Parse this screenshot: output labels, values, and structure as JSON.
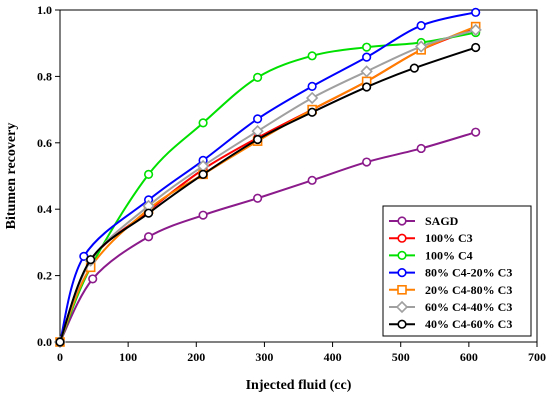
{
  "chart_data": {
    "type": "line",
    "xlabel": "Injected fluid (cc)",
    "ylabel": "Bitumen recovery",
    "xlim": [
      0,
      700
    ],
    "ylim": [
      0,
      1.0
    ],
    "xticks": [
      "0",
      "100",
      "200",
      "300",
      "400",
      "500",
      "600",
      "700"
    ],
    "yticks": [
      "0.0",
      "0.2",
      "0.4",
      "0.6",
      "0.8",
      "1.0"
    ],
    "grid": false,
    "legend_position": "bottom-right",
    "series": [
      {
        "name": "SAGD",
        "color": "#8B1A8B",
        "marker": "circle",
        "x": [
          0,
          48,
          130,
          210,
          290,
          370,
          450,
          530,
          610
        ],
        "y": [
          0.0,
          0.19,
          0.317,
          0.382,
          0.433,
          0.487,
          0.542,
          0.583,
          0.632
        ]
      },
      {
        "name": "100% C3",
        "color": "#FF0000",
        "marker": "circle",
        "x": [
          0,
          45,
          130,
          210,
          290,
          370,
          450,
          530,
          610
        ],
        "y": [
          0.0,
          0.245,
          0.395,
          0.52,
          0.615,
          0.7,
          0.785,
          0.88,
          0.945
        ]
      },
      {
        "name": "100% C4",
        "color": "#00E000",
        "marker": "circle",
        "x": [
          0,
          45,
          130,
          210,
          290,
          370,
          450,
          530,
          610
        ],
        "y": [
          0.0,
          0.225,
          0.505,
          0.66,
          0.797,
          0.862,
          0.888,
          0.902,
          0.932
        ]
      },
      {
        "name": "80% C4-20% C3",
        "color": "#0000FF",
        "marker": "circle",
        "x": [
          0,
          35,
          130,
          210,
          290,
          370,
          450,
          530,
          610
        ],
        "y": [
          0.0,
          0.258,
          0.428,
          0.547,
          0.672,
          0.77,
          0.858,
          0.953,
          0.993
        ]
      },
      {
        "name": "20% C4-80% C3",
        "color": "#FF8000",
        "marker": "square",
        "x": [
          0,
          45,
          130,
          210,
          290,
          370,
          450,
          530,
          610
        ],
        "y": [
          0.0,
          0.225,
          0.4,
          0.505,
          0.605,
          0.7,
          0.785,
          0.88,
          0.95
        ]
      },
      {
        "name": "60% C4-40% C3",
        "color": "#A0A0A0",
        "marker": "diamond",
        "x": [
          0,
          45,
          130,
          210,
          290,
          370,
          450,
          530,
          610
        ],
        "y": [
          0.0,
          0.245,
          0.41,
          0.53,
          0.635,
          0.735,
          0.815,
          0.89,
          0.94
        ]
      },
      {
        "name": "40% C4-60% C3",
        "color": "#000000",
        "marker": "circle",
        "x": [
          0,
          45,
          130,
          210,
          290,
          370,
          450,
          520,
          610
        ],
        "y": [
          0.0,
          0.248,
          0.388,
          0.505,
          0.61,
          0.692,
          0.768,
          0.825,
          0.887
        ]
      }
    ]
  }
}
